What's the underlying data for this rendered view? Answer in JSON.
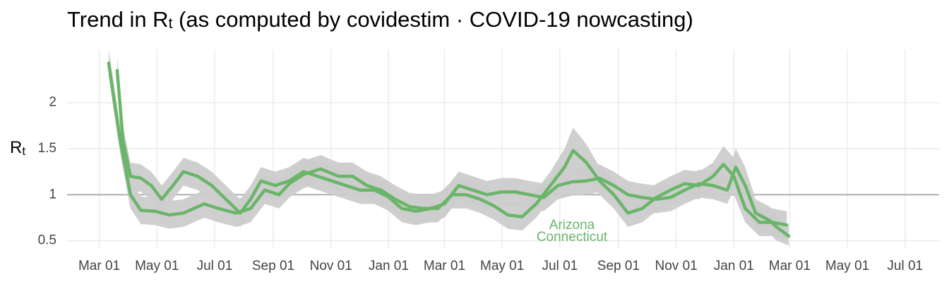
{
  "chart_data": {
    "type": "line",
    "title": [
      "Trend in R",
      "t",
      " (as computed by covidestim · COVID-19 nowcasting)"
    ],
    "y_label": [
      "R",
      "t"
    ],
    "annotations": [
      "Arizona",
      "Connecticut"
    ],
    "xlim": [
      -34,
      888
    ],
    "xticks": [
      {
        "value": 0,
        "label": "Mar 01"
      },
      {
        "value": 61,
        "label": "May 01"
      },
      {
        "value": 122,
        "label": "Jul 01"
      },
      {
        "value": 184,
        "label": "Sep 01"
      },
      {
        "value": 245,
        "label": "Nov 01"
      },
      {
        "value": 306,
        "label": "Jan 01"
      },
      {
        "value": 365,
        "label": "Mar 01"
      },
      {
        "value": 426,
        "label": "May 01"
      },
      {
        "value": 487,
        "label": "Jul 01"
      },
      {
        "value": 549,
        "label": "Sep 01"
      },
      {
        "value": 610,
        "label": "Nov 01"
      },
      {
        "value": 671,
        "label": "Jan 01"
      },
      {
        "value": 730,
        "label": "Mar 01"
      },
      {
        "value": 791,
        "label": "May 01"
      },
      {
        "value": 852,
        "label": "Jul 01"
      }
    ],
    "ylim": [
      0.42,
      2.58
    ],
    "yticks": [
      0.5,
      1.0,
      1.5,
      2.0
    ],
    "grid": true,
    "hline": 1.0,
    "band_color": "#cccccc",
    "series": [
      {
        "name": "Arizona",
        "color": "#6ab56a",
        "x": [
          10,
          22,
          33,
          44,
          59,
          74,
          89,
          111,
          126,
          145,
          160,
          175,
          190,
          201,
          216,
          234,
          253,
          268,
          283,
          298,
          313,
          328,
          343,
          358,
          373,
          388,
          403,
          417,
          432,
          447,
          462,
          477,
          492,
          501,
          515,
          529,
          544,
          559,
          574,
          589,
          604,
          619,
          634,
          649,
          660,
          671,
          683,
          698,
          712,
          727
        ],
        "values": [
          2.43,
          1.6,
          1.0,
          0.83,
          0.82,
          0.78,
          0.8,
          0.9,
          0.85,
          0.8,
          0.85,
          1.05,
          1.0,
          1.12,
          1.22,
          1.28,
          1.2,
          1.2,
          1.1,
          1.05,
          0.95,
          0.87,
          0.85,
          0.85,
          1.0,
          1.0,
          0.95,
          0.88,
          0.78,
          0.76,
          0.9,
          1.1,
          1.3,
          1.48,
          1.35,
          1.15,
          1.0,
          0.8,
          0.85,
          0.97,
          1.05,
          1.12,
          1.1,
          1.2,
          1.33,
          1.2,
          0.85,
          0.7,
          0.7,
          0.67
        ],
        "lower": [
          2.28,
          1.45,
          0.85,
          0.68,
          0.67,
          0.63,
          0.65,
          0.75,
          0.7,
          0.65,
          0.7,
          0.9,
          0.85,
          0.97,
          1.07,
          1.13,
          1.05,
          1.05,
          0.95,
          0.9,
          0.8,
          0.72,
          0.7,
          0.7,
          0.85,
          0.85,
          0.8,
          0.73,
          0.63,
          0.61,
          0.75,
          0.95,
          1.1,
          1.23,
          1.15,
          1.0,
          0.85,
          0.65,
          0.7,
          0.82,
          0.9,
          0.97,
          0.95,
          1.05,
          1.13,
          1.0,
          0.7,
          0.55,
          0.55,
          0.52
        ],
        "upper": [
          2.58,
          1.75,
          1.15,
          0.98,
          0.97,
          0.93,
          0.95,
          1.05,
          1.0,
          0.95,
          1.0,
          1.2,
          1.15,
          1.27,
          1.37,
          1.43,
          1.35,
          1.35,
          1.25,
          1.2,
          1.1,
          1.02,
          1.0,
          1.0,
          1.15,
          1.15,
          1.1,
          1.03,
          0.93,
          0.91,
          1.05,
          1.25,
          1.5,
          1.73,
          1.55,
          1.3,
          1.15,
          0.95,
          1.0,
          1.12,
          1.2,
          1.27,
          1.25,
          1.35,
          1.53,
          1.4,
          1.0,
          0.85,
          0.85,
          0.82
        ]
      },
      {
        "name": "Connecticut",
        "color": "#6ab56a",
        "x": [
          19,
          25,
          33,
          44,
          55,
          66,
          78,
          89,
          104,
          119,
          134,
          149,
          160,
          171,
          186,
          201,
          216,
          231,
          246,
          261,
          276,
          291,
          305,
          320,
          335,
          350,
          365,
          380,
          395,
          410,
          425,
          440,
          455,
          470,
          485,
          500,
          515,
          529,
          544,
          559,
          574,
          589,
          604,
          619,
          634,
          649,
          664,
          673,
          683,
          694,
          709,
          716,
          729
        ],
        "values": [
          2.35,
          1.6,
          1.2,
          1.18,
          1.1,
          0.95,
          1.1,
          1.25,
          1.2,
          1.1,
          0.95,
          0.8,
          0.95,
          1.15,
          1.1,
          1.15,
          1.25,
          1.2,
          1.15,
          1.1,
          1.05,
          1.05,
          0.98,
          0.85,
          0.82,
          0.85,
          0.9,
          1.1,
          1.05,
          1.0,
          1.03,
          1.03,
          1.0,
          0.97,
          1.1,
          1.14,
          1.15,
          1.18,
          1.1,
          1.0,
          0.97,
          0.95,
          0.97,
          1.05,
          1.12,
          1.1,
          1.05,
          1.3,
          1.1,
          0.8,
          0.72,
          0.65,
          0.55
        ],
        "lower": [
          2.2,
          1.45,
          1.05,
          1.03,
          0.95,
          0.8,
          0.95,
          1.1,
          1.05,
          0.95,
          0.8,
          0.65,
          0.8,
          1.0,
          0.95,
          1.0,
          1.1,
          1.05,
          1.0,
          0.95,
          0.9,
          0.9,
          0.83,
          0.7,
          0.67,
          0.7,
          0.75,
          0.95,
          0.9,
          0.85,
          0.88,
          0.88,
          0.85,
          0.82,
          0.95,
          0.99,
          1.0,
          1.03,
          0.95,
          0.85,
          0.82,
          0.8,
          0.82,
          0.9,
          0.97,
          0.95,
          0.9,
          1.1,
          0.9,
          0.65,
          0.57,
          0.5,
          0.45
        ],
        "upper": [
          2.5,
          1.75,
          1.35,
          1.33,
          1.25,
          1.1,
          1.25,
          1.4,
          1.35,
          1.25,
          1.1,
          0.95,
          1.1,
          1.3,
          1.25,
          1.3,
          1.4,
          1.35,
          1.3,
          1.25,
          1.2,
          1.2,
          1.13,
          1.0,
          0.97,
          1.0,
          1.05,
          1.25,
          1.2,
          1.15,
          1.18,
          1.18,
          1.15,
          1.12,
          1.25,
          1.29,
          1.3,
          1.33,
          1.25,
          1.15,
          1.12,
          1.1,
          1.12,
          1.2,
          1.27,
          1.25,
          1.2,
          1.5,
          1.3,
          0.95,
          0.87,
          0.8,
          0.65
        ]
      }
    ]
  }
}
